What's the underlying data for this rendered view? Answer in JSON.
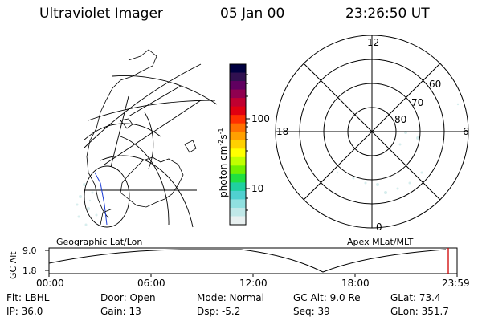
{
  "header": {
    "title": "Ultraviolet Imager",
    "date": "05 Jan 00",
    "time": "23:26:50 UT"
  },
  "colorbar": {
    "unit": "photon cm",
    "unit_sup1": "-2",
    "unit_mid": "s",
    "unit_sup2": "-1",
    "tick_upper": "100",
    "tick_lower": "10",
    "colors": [
      "#000040",
      "#301050",
      "#600060",
      "#900050",
      "#c00030",
      "#e00010",
      "#ff3000",
      "#ff7000",
      "#ffa000",
      "#ffd000",
      "#ffff00",
      "#c0ff00",
      "#70f000",
      "#20e040",
      "#20d0a0",
      "#50d0d0",
      "#90e0e0",
      "#c0e8e8",
      "#e8f0f0"
    ]
  },
  "left_panel": {
    "label": "Geographic Lat/Lon"
  },
  "right_panel": {
    "label": "Apex MLat/MLT",
    "mlt_top": "12",
    "mlt_left": "18",
    "mlt_right": "6",
    "mlt_bottom": "0",
    "lat_60": "60",
    "lat_70": "70",
    "lat_80": "80"
  },
  "altitude_plot": {
    "ylabel": "GC Alt",
    "ytick_top": "9.0",
    "ytick_bottom": "1.8",
    "xticks": [
      "00:00",
      "06:00",
      "12:00",
      "18:00",
      "23:59"
    ],
    "marker_color": "#d00000"
  },
  "info": {
    "filter": "Flt: LBHL",
    "door": "Door: Open",
    "mode": "Mode: Normal",
    "gc_alt": "GC Alt: 9.0 Re",
    "glat": "GLat:  73.4",
    "ip": "IP: 36.0",
    "gain": "Gain: 13",
    "dsp": "Dsp:   -5.2",
    "seq": "Seq: 39",
    "glon": "GLon: 351.7"
  }
}
